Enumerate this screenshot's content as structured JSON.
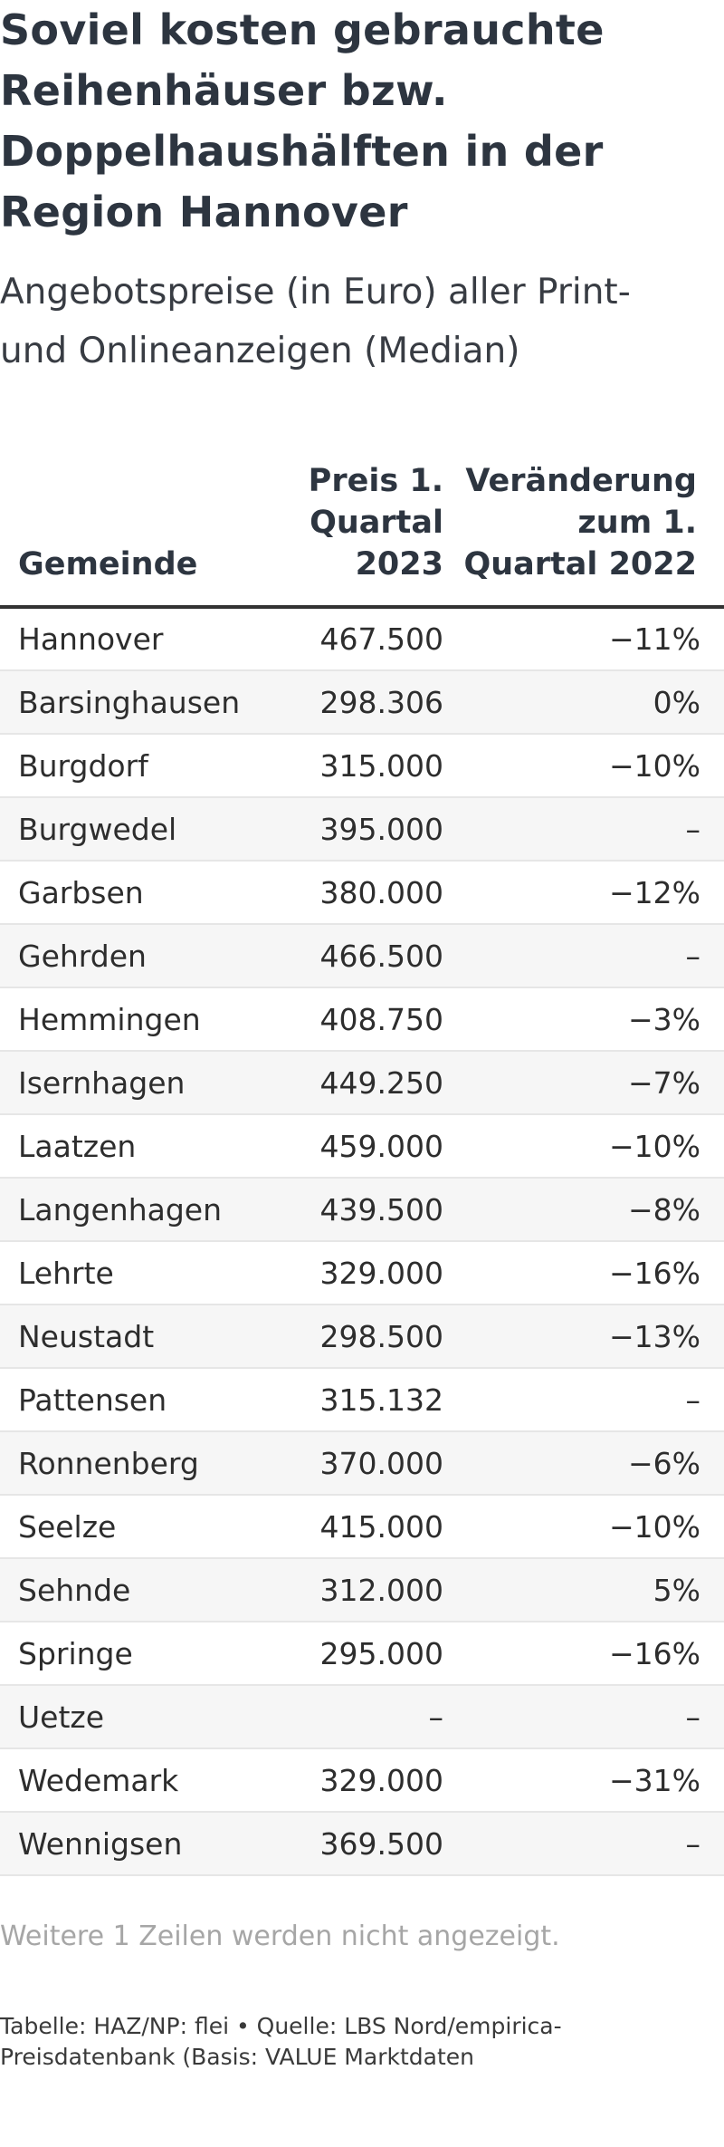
{
  "title": "Soviel kosten gebrauchte Reihenhäuser bzw. Doppelhaushälften in der Region Hannover",
  "subtitle": "Angebotspreise (in Euro) aller Print- und Onlineanzeigen (Median)",
  "table": {
    "headers": {
      "gemeinde": "Gemeinde",
      "preis": "Preis 1. Quartal 2023",
      "veraenderung": "Veränderung zum 1. Quartal 2022"
    },
    "rows": [
      {
        "gemeinde": "Hannover",
        "preis": "467.500",
        "veraenderung": "−11%"
      },
      {
        "gemeinde": "Barsinghausen",
        "preis": "298.306",
        "veraenderung": "0%"
      },
      {
        "gemeinde": "Burgdorf",
        "preis": "315.000",
        "veraenderung": "−10%"
      },
      {
        "gemeinde": "Burgwedel",
        "preis": "395.000",
        "veraenderung": "–"
      },
      {
        "gemeinde": "Garbsen",
        "preis": "380.000",
        "veraenderung": "−12%"
      },
      {
        "gemeinde": "Gehrden",
        "preis": "466.500",
        "veraenderung": "–"
      },
      {
        "gemeinde": "Hemmingen",
        "preis": "408.750",
        "veraenderung": "−3%"
      },
      {
        "gemeinde": "Isernhagen",
        "preis": "449.250",
        "veraenderung": "−7%"
      },
      {
        "gemeinde": "Laatzen",
        "preis": "459.000",
        "veraenderung": "−10%"
      },
      {
        "gemeinde": "Langenhagen",
        "preis": "439.500",
        "veraenderung": "−8%"
      },
      {
        "gemeinde": "Lehrte",
        "preis": "329.000",
        "veraenderung": "−16%"
      },
      {
        "gemeinde": "Neustadt",
        "preis": "298.500",
        "veraenderung": "−13%"
      },
      {
        "gemeinde": "Pattensen",
        "preis": "315.132",
        "veraenderung": "–"
      },
      {
        "gemeinde": "Ronnenberg",
        "preis": "370.000",
        "veraenderung": "−6%"
      },
      {
        "gemeinde": "Seelze",
        "preis": "415.000",
        "veraenderung": "−10%"
      },
      {
        "gemeinde": "Sehnde",
        "preis": "312.000",
        "veraenderung": "5%"
      },
      {
        "gemeinde": "Springe",
        "preis": "295.000",
        "veraenderung": "−16%"
      },
      {
        "gemeinde": "Uetze",
        "preis": "–",
        "veraenderung": "–"
      },
      {
        "gemeinde": "Wedemark",
        "preis": "329.000",
        "veraenderung": "−31%"
      },
      {
        "gemeinde": "Wennigsen",
        "preis": "369.500",
        "veraenderung": "–"
      }
    ]
  },
  "hidden_rows_note": "Weitere 1 Zeilen werden nicht angezeigt.",
  "source": "Tabelle: HAZ/NP: flei • Quelle: LBS Nord/empirica-Preisdatenbank (Basis: VALUE Marktdaten"
}
